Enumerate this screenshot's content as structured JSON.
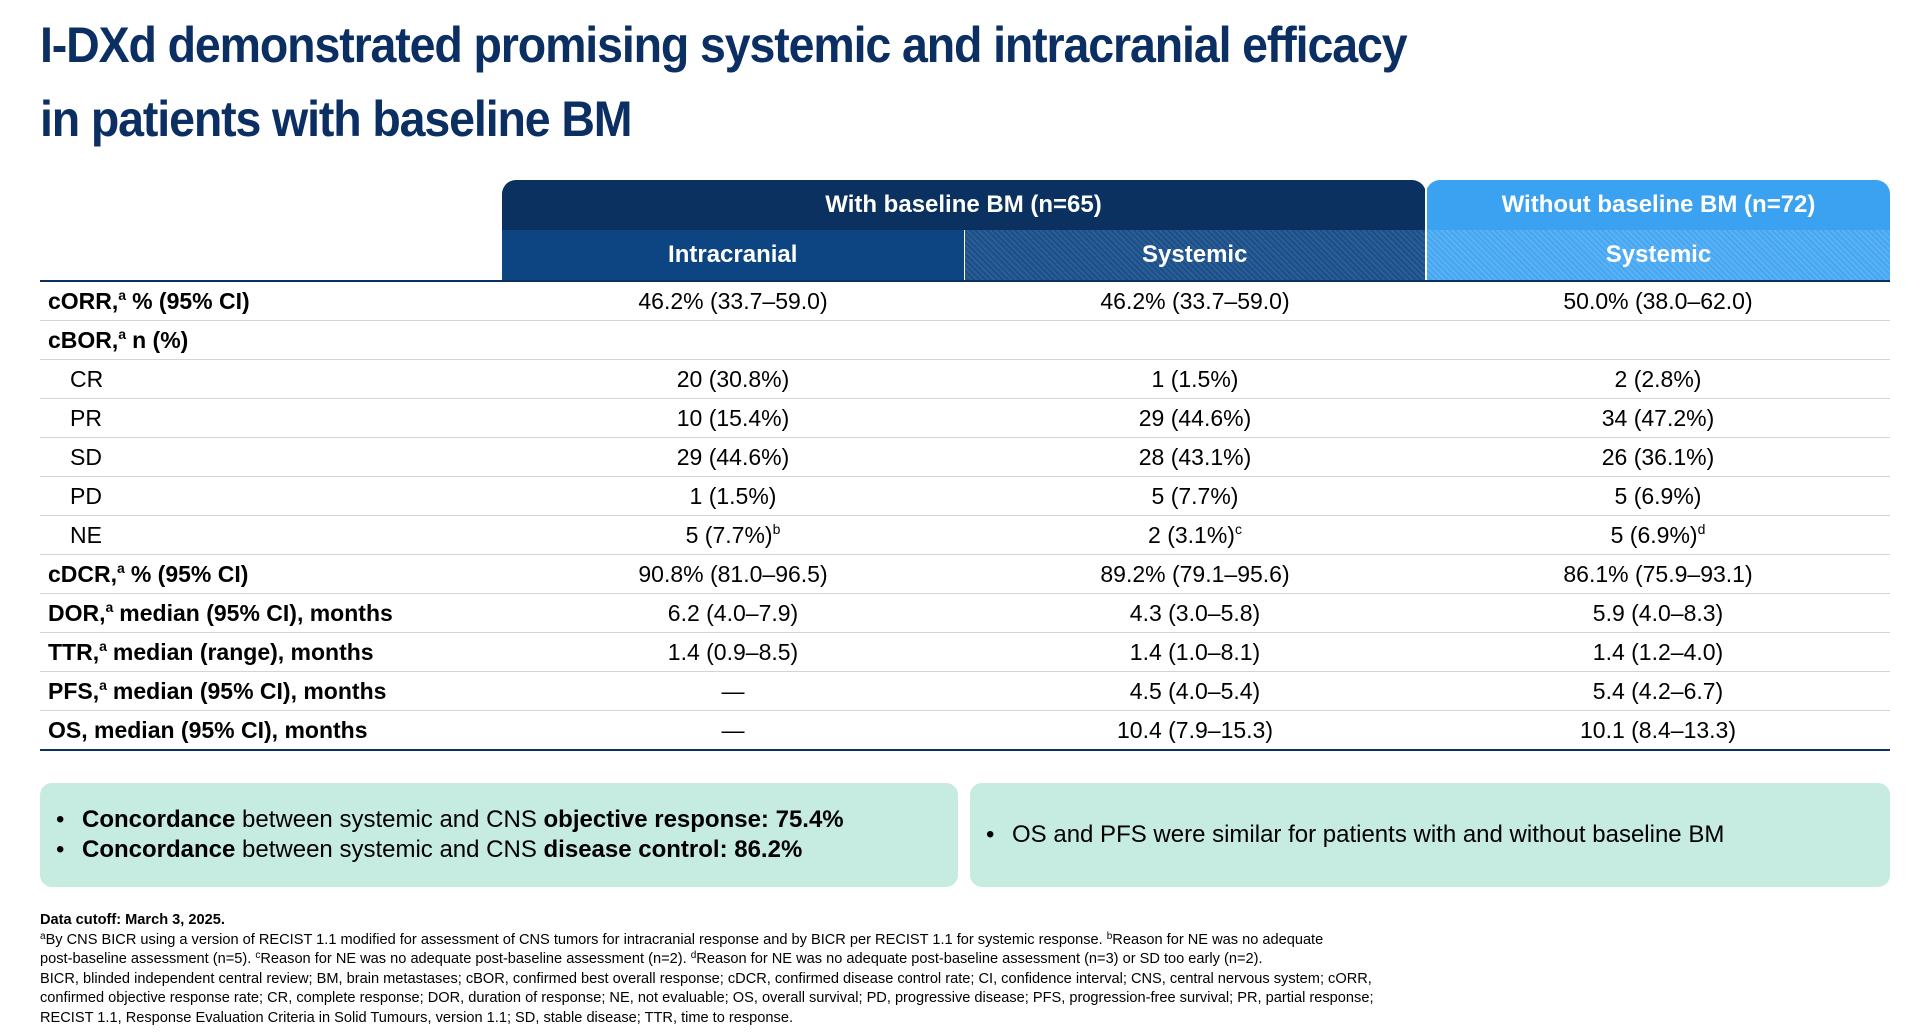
{
  "title_lines": [
    "I-DXd demonstrated promising systemic and intracranial efficacy",
    "in patients with baseline BM"
  ],
  "table": {
    "groups": [
      "With baseline BM (n=65)",
      "Without baseline BM (n=72)"
    ],
    "columns": [
      "Intracranial",
      "Systemic",
      "Systemic"
    ],
    "rows": [
      {
        "label": "cORR,",
        "sup": "a",
        "rest": "% (95% CI)",
        "bold": true,
        "cells": [
          {
            "t": "46.2% (33.7–59.0)"
          },
          {
            "t": "46.2% (33.7–59.0)"
          },
          {
            "t": "50.0% (38.0–62.0)"
          }
        ]
      },
      {
        "label": "cBOR,",
        "sup": "a",
        "rest": "n (%)",
        "bold": true,
        "cells": []
      },
      {
        "label": "CR",
        "indent": true,
        "cells": [
          {
            "t": "20 (30.8%)"
          },
          {
            "t": "1 (1.5%)"
          },
          {
            "t": "2 (2.8%)"
          }
        ]
      },
      {
        "label": "PR",
        "indent": true,
        "cells": [
          {
            "t": "10 (15.4%)"
          },
          {
            "t": "29 (44.6%)"
          },
          {
            "t": "34 (47.2%)"
          }
        ]
      },
      {
        "label": "SD",
        "indent": true,
        "cells": [
          {
            "t": "29 (44.6%)"
          },
          {
            "t": "28 (43.1%)"
          },
          {
            "t": "26 (36.1%)"
          }
        ]
      },
      {
        "label": "PD",
        "indent": true,
        "cells": [
          {
            "t": "1 (1.5%)"
          },
          {
            "t": "5 (7.7%)"
          },
          {
            "t": "5 (6.9%)"
          }
        ]
      },
      {
        "label": "NE",
        "indent": true,
        "cells": [
          {
            "t": "5 (7.7%)",
            "sup": "b"
          },
          {
            "t": "2 (3.1%)",
            "sup": "c"
          },
          {
            "t": "5 (6.9%)",
            "sup": "d"
          }
        ]
      },
      {
        "label": "cDCR,",
        "sup": "a",
        "rest": "% (95% CI)",
        "bold": true,
        "cells": [
          {
            "t": "90.8% (81.0–96.5)"
          },
          {
            "t": "89.2% (79.1–95.6)"
          },
          {
            "t": "86.1% (75.9–93.1)"
          }
        ]
      },
      {
        "label": "DOR,",
        "sup": "a",
        "rest": "median (95% CI), months",
        "bold": true,
        "cells": [
          {
            "t": "6.2 (4.0–7.9)"
          },
          {
            "t": "4.3 (3.0–5.8)"
          },
          {
            "t": "5.9 (4.0–8.3)"
          }
        ]
      },
      {
        "label": "TTR,",
        "sup": "a",
        "rest": "median (range), months",
        "bold": true,
        "cells": [
          {
            "t": "1.4 (0.9–8.5)"
          },
          {
            "t": "1.4 (1.0–8.1)"
          },
          {
            "t": "1.4 (1.2–4.0)"
          }
        ]
      },
      {
        "label": "PFS,",
        "sup": "a",
        "rest": "median (95% CI), months",
        "bold": true,
        "cells": [
          {
            "t": "—"
          },
          {
            "t": "4.5 (4.0–5.4)"
          },
          {
            "t": "5.4 (4.2–6.7)"
          }
        ]
      },
      {
        "label": "OS, median (95% CI), months",
        "bold": true,
        "cells": [
          {
            "t": "—"
          },
          {
            "t": "10.4 (7.9–15.3)"
          },
          {
            "t": "10.1 (8.4–13.3)"
          }
        ]
      }
    ]
  },
  "callouts": [
    [
      [
        {
          "t": "Concordance",
          "s": "b"
        },
        {
          "t": " between systemic and CNS "
        },
        {
          "t": "objective response: 75.4%",
          "s": "b"
        }
      ],
      [
        {
          "t": "Concordance",
          "s": "b"
        },
        {
          "t": " between systemic and CNS "
        },
        {
          "t": "disease control: 86.2%",
          "s": "b"
        }
      ]
    ],
    [
      [
        {
          "t": "OS and PFS were similar for patients with and without baseline BM"
        }
      ]
    ]
  ],
  "footnotes": [
    [
      {
        "t": "Data cutoff: March 3, 2025.",
        "s": "b"
      }
    ],
    [
      {
        "t": "a",
        "s": "sup"
      },
      {
        "t": "By CNS BICR using a version of RECIST 1.1 modified for assessment of CNS tumors for intracranial response and by BICR per RECIST 1.1 for systemic response. "
      },
      {
        "t": "b",
        "s": "sup"
      },
      {
        "t": "Reason for NE was no adequate"
      }
    ],
    [
      {
        "t": "post-baseline assessment (n=5). "
      },
      {
        "t": "c",
        "s": "sup"
      },
      {
        "t": "Reason for NE was no adequate post-baseline assessment (n=2). "
      },
      {
        "t": "d",
        "s": "sup"
      },
      {
        "t": "Reason for NE was no adequate post-baseline assessment (n=3) or SD too early (n=2)."
      }
    ],
    [
      {
        "t": "BICR, blinded independent central review; BM, brain metastases; cBOR, confirmed best overall response; cDCR, confirmed disease control rate; CI, confidence interval; CNS, central nervous system; cORR,"
      }
    ],
    [
      {
        "t": "confirmed objective response rate; CR, complete response; DOR, duration of response; NE, not evaluable; OS, overall survival; PD, progressive disease; PFS, progression-free survival; PR, partial response;"
      }
    ],
    [
      {
        "t": "RECIST 1.1, Response Evaluation Criteria in Solid Tumours, version 1.1; SD, stable disease; TTR, time to response."
      }
    ]
  ]
}
